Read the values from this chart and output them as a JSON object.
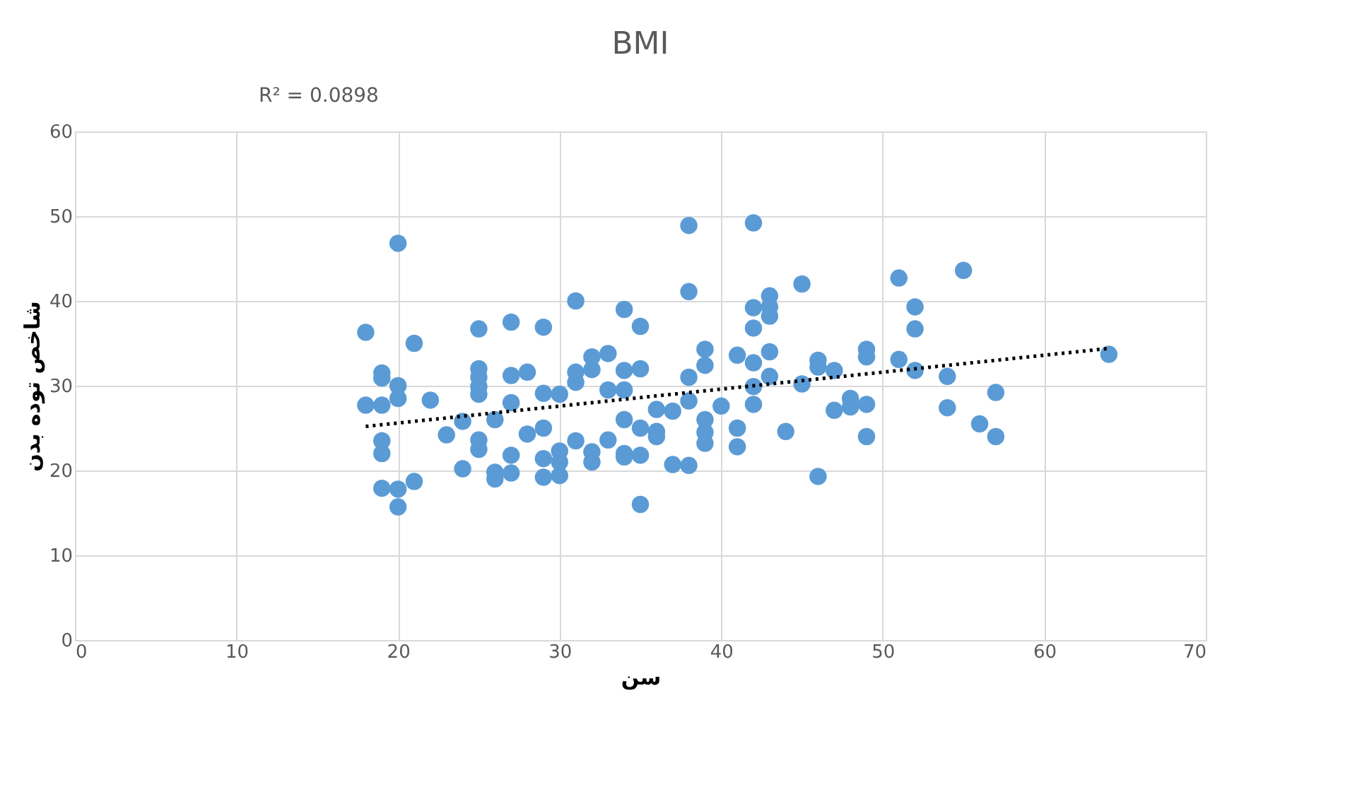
{
  "chart_data": {
    "type": "scatter",
    "title": "BMI",
    "xlabel": "سن",
    "ylabel": "شاخص توده بدن",
    "annotations": [
      "R² = 0.0898"
    ],
    "xlim": [
      0,
      70
    ],
    "xticks": [
      0,
      10,
      20,
      30,
      40,
      50,
      60,
      70
    ],
    "ylim": [
      0,
      60
    ],
    "yticks": [
      0,
      10,
      20,
      30,
      40,
      50,
      60
    ],
    "grid": true,
    "marker": "circle",
    "series": [
      {
        "color": "#5b9bd5",
        "x": [
          18,
          18,
          19,
          19,
          19,
          19,
          19,
          19,
          20,
          20,
          20,
          20,
          20,
          21,
          21,
          22,
          23,
          24,
          24,
          25,
          25,
          25,
          25,
          25,
          25,
          25,
          26,
          26,
          26,
          27,
          27,
          27,
          27,
          27,
          28,
          28,
          29,
          29,
          29,
          29,
          29,
          30,
          30,
          30,
          30,
          31,
          31,
          31,
          31,
          32,
          32,
          32,
          32,
          33,
          33,
          33,
          34,
          34,
          34,
          34,
          34,
          34,
          35,
          35,
          35,
          35,
          35,
          36,
          36,
          36,
          37,
          37,
          38,
          38,
          38,
          38,
          38,
          39,
          39,
          39,
          39,
          39,
          40,
          41,
          41,
          41,
          42,
          42,
          42,
          42,
          42,
          42,
          43,
          43,
          43,
          43,
          43,
          44,
          45,
          45,
          46,
          46,
          46,
          47,
          47,
          48,
          48,
          49,
          49,
          49,
          49,
          51,
          51,
          52,
          52,
          52,
          54,
          54,
          55,
          56,
          57,
          57,
          64
        ],
        "values": [
          36.3,
          27.7,
          31.5,
          30.9,
          27.7,
          23.5,
          22,
          17.9,
          46.8,
          30,
          28.5,
          17.8,
          15.7,
          35,
          18.7,
          28.3,
          24.2,
          20.2,
          25.8,
          36.7,
          32,
          31,
          29.9,
          29,
          23.6,
          22.5,
          26,
          19.8,
          19,
          37.5,
          31.2,
          28,
          21.8,
          19.7,
          31.6,
          24.3,
          36.9,
          29.1,
          25,
          21.4,
          19.2,
          29,
          22.3,
          21,
          19.4,
          40,
          31.6,
          30.4,
          23.5,
          33.4,
          31.9,
          22.2,
          21,
          33.8,
          29.5,
          23.6,
          39,
          31.8,
          29.5,
          26,
          22,
          21.6,
          37,
          32,
          25,
          21.8,
          16,
          27.2,
          24.6,
          24,
          27,
          20.7,
          48.9,
          41.1,
          31,
          28.2,
          20.6,
          34.3,
          32.4,
          26,
          24.5,
          23.2,
          27.6,
          33.6,
          25,
          22.8,
          49.2,
          39.2,
          36.8,
          32.7,
          29.9,
          27.8,
          40.6,
          39.3,
          38.2,
          34,
          31.1,
          24.6,
          42,
          30.2,
          33,
          32.2,
          19.3,
          31.8,
          27.1,
          28.5,
          27.5,
          34.3,
          33.4,
          27.8,
          24,
          42.7,
          33.1,
          39.3,
          36.7,
          31.8,
          31.1,
          27.4,
          43.6,
          25.5,
          29.2,
          24,
          33.7
        ]
      },
      {
        "type": "line",
        "color": "#000000",
        "line_style": "dotted",
        "marker": "none",
        "x": [
          18,
          64
        ],
        "values": [
          25.2,
          34.4
        ]
      }
    ]
  }
}
